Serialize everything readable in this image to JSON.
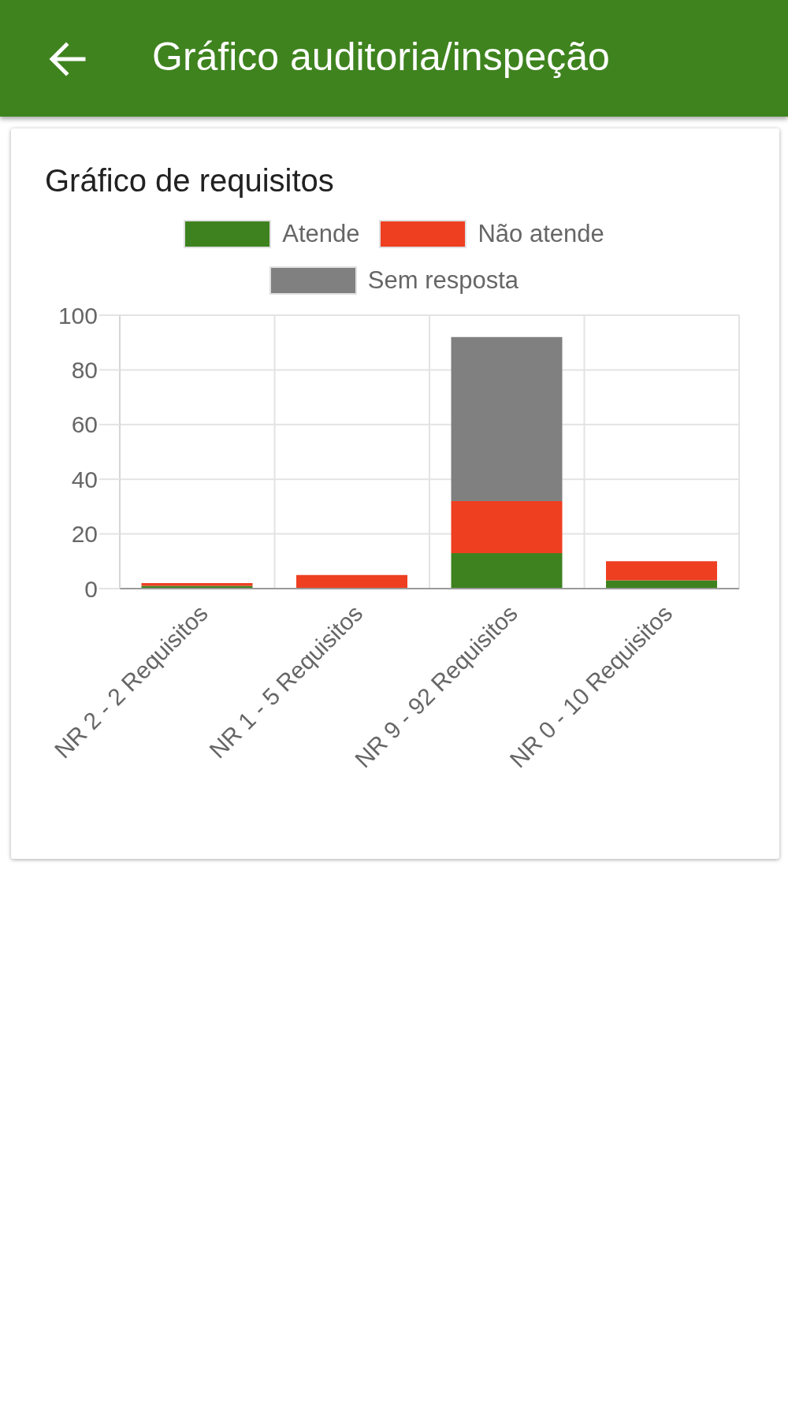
{
  "chart_data": {
    "type": "bar",
    "title": "Gráfico auditoria/inspeção",
    "subtitle": "Gráfico de requisitos",
    "categories": [
      "NR 2 - 2 Requisitos",
      "NR 1 - 5 Requisitos",
      "NR 9 - 92 Requisitos",
      "NR 0 - 10 Requisitos"
    ],
    "series": [
      {
        "name": "Atende",
        "color": "#3e821f",
        "values": [
          1,
          0,
          13,
          3
        ]
      },
      {
        "name": "Não atende",
        "color": "#ee3f21",
        "values": [
          1,
          5,
          19,
          7
        ]
      },
      {
        "name": "Sem resposta",
        "color": "#808080",
        "values": [
          0,
          0,
          60,
          0
        ]
      }
    ],
    "stacked": true,
    "ylim": [
      0,
      100
    ],
    "yticks": [
      0,
      20,
      40,
      60,
      80,
      100
    ],
    "grid": true,
    "legend": "top"
  }
}
